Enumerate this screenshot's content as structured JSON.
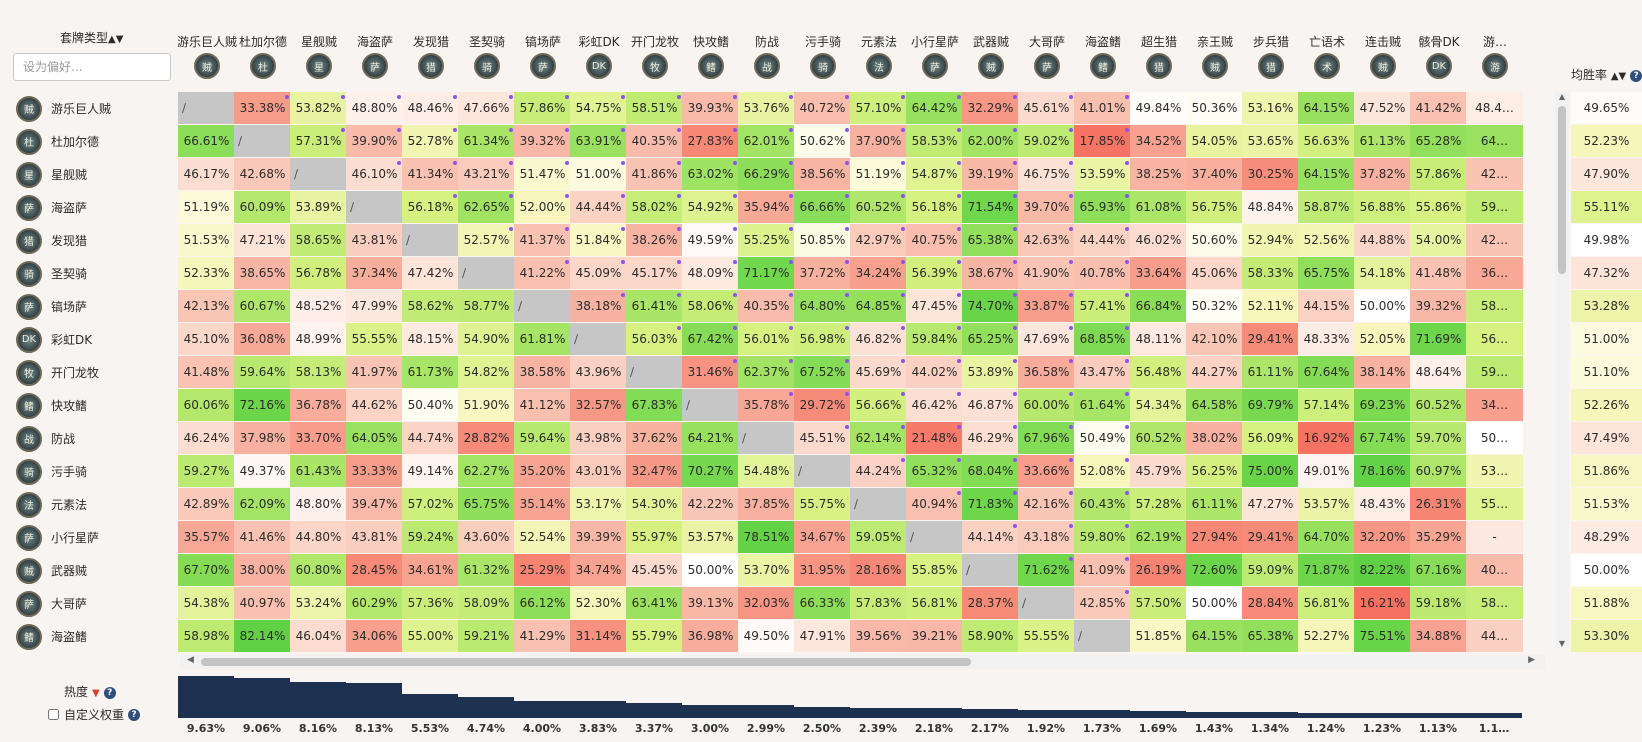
{
  "header": {
    "sort_label": "套牌类型",
    "sort_icon": "sort-updown-icon",
    "search_placeholder": "设为偏好...",
    "winrate_label": "均胜率",
    "help_icon": "question-icon"
  },
  "popularity": {
    "label": "热度",
    "custom_weight_label": "自定义权重",
    "custom_weight_checked": false
  },
  "rows": [
    {
      "name": "游乐巨人贼",
      "glyph": "贼"
    },
    {
      "name": "杜加尔德",
      "glyph": "杜"
    },
    {
      "name": "星舰贼",
      "glyph": "星"
    },
    {
      "name": "海盗萨",
      "glyph": "萨"
    },
    {
      "name": "发现猎",
      "glyph": "猎"
    },
    {
      "name": "圣契骑",
      "glyph": "骑"
    },
    {
      "name": "镐场萨",
      "glyph": "萨"
    },
    {
      "name": "彩虹DK",
      "glyph": "DK"
    },
    {
      "name": "开门龙牧",
      "glyph": "牧"
    },
    {
      "name": "快攻鳍",
      "glyph": "鳍"
    },
    {
      "name": "防战",
      "glyph": "战"
    },
    {
      "name": "污手骑",
      "glyph": "骑"
    },
    {
      "name": "元素法",
      "glyph": "法"
    },
    {
      "name": "小行星萨",
      "glyph": "萨"
    },
    {
      "name": "武器贼",
      "glyph": "贼"
    },
    {
      "name": "大哥萨",
      "glyph": "萨"
    },
    {
      "name": "海盗鳍",
      "glyph": "鳍"
    }
  ],
  "columns": [
    {
      "name": "游乐巨人贼",
      "glyph": "贼",
      "popularity": "9.63%",
      "pop_value": 9.63
    },
    {
      "name": "杜加尔德",
      "glyph": "杜",
      "popularity": "9.06%",
      "pop_value": 9.06
    },
    {
      "name": "星舰贼",
      "glyph": "星",
      "popularity": "8.16%",
      "pop_value": 8.16
    },
    {
      "name": "海盗萨",
      "glyph": "萨",
      "popularity": "8.13%",
      "pop_value": 8.13
    },
    {
      "name": "发现猎",
      "glyph": "猎",
      "popularity": "5.53%",
      "pop_value": 5.53
    },
    {
      "name": "圣契骑",
      "glyph": "骑",
      "popularity": "4.74%",
      "pop_value": 4.74
    },
    {
      "name": "镐场萨",
      "glyph": "萨",
      "popularity": "4.00%",
      "pop_value": 4.0
    },
    {
      "name": "彩虹DK",
      "glyph": "DK",
      "popularity": "3.83%",
      "pop_value": 3.83
    },
    {
      "name": "开门龙牧",
      "glyph": "牧",
      "popularity": "3.37%",
      "pop_value": 3.37
    },
    {
      "name": "快攻鳍",
      "glyph": "鳍",
      "popularity": "3.00%",
      "pop_value": 3.0
    },
    {
      "name": "防战",
      "glyph": "战",
      "popularity": "2.99%",
      "pop_value": 2.99
    },
    {
      "name": "污手骑",
      "glyph": "骑",
      "popularity": "2.50%",
      "pop_value": 2.5
    },
    {
      "name": "元素法",
      "glyph": "法",
      "popularity": "2.39%",
      "pop_value": 2.39
    },
    {
      "name": "小行星萨",
      "glyph": "萨",
      "popularity": "2.18%",
      "pop_value": 2.18
    },
    {
      "name": "武器贼",
      "glyph": "贼",
      "popularity": "2.17%",
      "pop_value": 2.17
    },
    {
      "name": "大哥萨",
      "glyph": "萨",
      "popularity": "1.92%",
      "pop_value": 1.92
    },
    {
      "name": "海盗鳍",
      "glyph": "鳍",
      "popularity": "1.73%",
      "pop_value": 1.73
    },
    {
      "name": "超生猎",
      "glyph": "猎",
      "popularity": "1.69%",
      "pop_value": 1.69
    },
    {
      "name": "亲王贼",
      "glyph": "贼",
      "popularity": "1.43%",
      "pop_value": 1.43
    },
    {
      "name": "步兵猎",
      "glyph": "猎",
      "popularity": "1.34%",
      "pop_value": 1.34
    },
    {
      "name": "亡语术",
      "glyph": "术",
      "popularity": "1.24%",
      "pop_value": 1.24
    },
    {
      "name": "连击贼",
      "glyph": "贼",
      "popularity": "1.23%",
      "pop_value": 1.23
    },
    {
      "name": "骸骨DK",
      "glyph": "DK",
      "popularity": "1.13%",
      "pop_value": 1.13
    },
    {
      "name": "游…",
      "glyph": "游",
      "popularity": "1.1…",
      "pop_value": 1.1
    }
  ],
  "self_mark": "∕",
  "matrix": [
    [
      null,
      "33.38%",
      "53.82%",
      "48.80%",
      "48.46%",
      "47.66%",
      "57.86%",
      "54.75%",
      "58.51%",
      "39.93%",
      "53.76%",
      "40.72%",
      "57.10%",
      "64.42%",
      "32.29%",
      "45.61%",
      "41.01%",
      "49.84%",
      "50.36%",
      "53.16%",
      "64.15%",
      "47.52%",
      "41.42%",
      "48.4…"
    ],
    [
      "66.61%",
      null,
      "57.31%",
      "39.90%",
      "52.78%",
      "61.34%",
      "39.32%",
      "63.91%",
      "40.35%",
      "27.83%",
      "62.01%",
      "50.62%",
      "37.90%",
      "58.53%",
      "62.00%",
      "59.02%",
      "17.85%",
      "34.52%",
      "54.05%",
      "53.65%",
      "56.63%",
      "61.13%",
      "65.28%",
      "64…"
    ],
    [
      "46.17%",
      "42.68%",
      null,
      "46.10%",
      "41.34%",
      "43.21%",
      "51.47%",
      "51.00%",
      "41.86%",
      "63.02%",
      "66.29%",
      "38.56%",
      "51.19%",
      "54.87%",
      "39.19%",
      "46.75%",
      "53.59%",
      "38.25%",
      "37.40%",
      "30.25%",
      "64.15%",
      "37.82%",
      "57.86%",
      "42…"
    ],
    [
      "51.19%",
      "60.09%",
      "53.89%",
      null,
      "56.18%",
      "62.65%",
      "52.00%",
      "44.44%",
      "58.02%",
      "54.92%",
      "35.94%",
      "66.66%",
      "60.52%",
      "56.18%",
      "71.54%",
      "39.70%",
      "65.93%",
      "61.08%",
      "56.75%",
      "48.84%",
      "58.87%",
      "56.88%",
      "55.86%",
      "59…"
    ],
    [
      "51.53%",
      "47.21%",
      "58.65%",
      "43.81%",
      null,
      "52.57%",
      "41.37%",
      "51.84%",
      "38.26%",
      "49.59%",
      "55.25%",
      "50.85%",
      "42.97%",
      "40.75%",
      "65.38%",
      "42.63%",
      "44.44%",
      "46.02%",
      "50.60%",
      "52.94%",
      "52.56%",
      "44.88%",
      "54.00%",
      "42…"
    ],
    [
      "52.33%",
      "38.65%",
      "56.78%",
      "37.34%",
      "47.42%",
      null,
      "41.22%",
      "45.09%",
      "45.17%",
      "48.09%",
      "71.17%",
      "37.72%",
      "34.24%",
      "56.39%",
      "38.67%",
      "41.90%",
      "40.78%",
      "33.64%",
      "45.06%",
      "58.33%",
      "65.75%",
      "54.18%",
      "41.48%",
      "36…"
    ],
    [
      "42.13%",
      "60.67%",
      "48.52%",
      "47.99%",
      "58.62%",
      "58.77%",
      null,
      "38.18%",
      "61.41%",
      "58.06%",
      "40.35%",
      "64.80%",
      "64.85%",
      "47.45%",
      "74.70%",
      "33.87%",
      "57.41%",
      "66.84%",
      "50.32%",
      "52.11%",
      "44.15%",
      "50.00%",
      "39.32%",
      "58…"
    ],
    [
      "45.10%",
      "36.08%",
      "48.99%",
      "55.55%",
      "48.15%",
      "54.90%",
      "61.81%",
      null,
      "56.03%",
      "67.42%",
      "56.01%",
      "56.98%",
      "46.82%",
      "59.84%",
      "65.25%",
      "47.69%",
      "68.85%",
      "48.11%",
      "42.10%",
      "29.41%",
      "48.33%",
      "52.05%",
      "71.69%",
      "56…"
    ],
    [
      "41.48%",
      "59.64%",
      "58.13%",
      "41.97%",
      "61.73%",
      "54.82%",
      "38.58%",
      "43.96%",
      null,
      "31.46%",
      "62.37%",
      "67.52%",
      "45.69%",
      "44.02%",
      "53.89%",
      "36.58%",
      "43.47%",
      "56.48%",
      "44.27%",
      "61.11%",
      "67.64%",
      "38.14%",
      "48.64%",
      "59…"
    ],
    [
      "60.06%",
      "72.16%",
      "36.78%",
      "44.62%",
      "50.40%",
      "51.90%",
      "41.12%",
      "32.57%",
      "67.83%",
      null,
      "35.78%",
      "29.72%",
      "56.66%",
      "46.42%",
      "46.87%",
      "60.00%",
      "61.64%",
      "54.34%",
      "64.58%",
      "69.79%",
      "57.14%",
      "69.23%",
      "60.52%",
      "34…"
    ],
    [
      "46.24%",
      "37.98%",
      "33.70%",
      "64.05%",
      "44.74%",
      "28.82%",
      "59.64%",
      "43.98%",
      "37.62%",
      "64.21%",
      null,
      "45.51%",
      "62.14%",
      "21.48%",
      "46.29%",
      "67.96%",
      "50.49%",
      "60.52%",
      "38.02%",
      "56.09%",
      "16.92%",
      "67.74%",
      "59.70%",
      "50…"
    ],
    [
      "59.27%",
      "49.37%",
      "61.43%",
      "33.33%",
      "49.14%",
      "62.27%",
      "35.20%",
      "43.01%",
      "32.47%",
      "70.27%",
      "54.48%",
      null,
      "44.24%",
      "65.32%",
      "68.04%",
      "33.66%",
      "52.08%",
      "45.79%",
      "56.25%",
      "75.00%",
      "49.01%",
      "78.16%",
      "60.97%",
      "53…"
    ],
    [
      "42.89%",
      "62.09%",
      "48.80%",
      "39.47%",
      "57.02%",
      "65.75%",
      "35.14%",
      "53.17%",
      "54.30%",
      "42.22%",
      "37.85%",
      "55.75%",
      null,
      "40.94%",
      "71.83%",
      "42.16%",
      "60.43%",
      "57.28%",
      "61.11%",
      "47.27%",
      "53.57%",
      "48.43%",
      "26.31%",
      "55…"
    ],
    [
      "35.57%",
      "41.46%",
      "44.80%",
      "43.81%",
      "59.24%",
      "43.60%",
      "52.54%",
      "39.39%",
      "55.97%",
      "53.57%",
      "78.51%",
      "34.67%",
      "59.05%",
      null,
      "44.14%",
      "43.18%",
      "59.80%",
      "62.19%",
      "27.94%",
      "29.41%",
      "64.70%",
      "32.20%",
      "35.29%",
      "-"
    ],
    [
      "67.70%",
      "38.00%",
      "60.80%",
      "28.45%",
      "34.61%",
      "61.32%",
      "25.29%",
      "34.74%",
      "45.45%",
      "50.00%",
      "53.70%",
      "31.95%",
      "28.16%",
      "55.85%",
      null,
      "71.62%",
      "41.09%",
      "26.19%",
      "72.60%",
      "59.09%",
      "71.87%",
      "82.22%",
      "67.16%",
      "40…"
    ],
    [
      "54.38%",
      "40.97%",
      "53.24%",
      "60.29%",
      "57.36%",
      "58.09%",
      "66.12%",
      "52.30%",
      "63.41%",
      "39.13%",
      "32.03%",
      "66.33%",
      "57.83%",
      "56.81%",
      "28.37%",
      null,
      "42.85%",
      "57.50%",
      "50.00%",
      "28.84%",
      "56.81%",
      "16.21%",
      "59.18%",
      "58…"
    ],
    [
      "58.98%",
      "82.14%",
      "46.04%",
      "34.06%",
      "55.00%",
      "59.21%",
      "41.29%",
      "31.14%",
      "55.79%",
      "36.98%",
      "49.50%",
      "47.91%",
      "39.56%",
      "39.21%",
      "58.90%",
      "55.55%",
      null,
      "51.85%",
      "64.15%",
      "65.38%",
      "52.27%",
      "75.51%",
      "34.88%",
      "44…"
    ]
  ],
  "avg_winrates": [
    "49.65%",
    "52.23%",
    "47.90%",
    "55.11%",
    "49.98%",
    "47.32%",
    "53.28%",
    "51.00%",
    "51.10%",
    "52.26%",
    "47.49%",
    "51.86%",
    "51.53%",
    "48.29%",
    "50.00%",
    "51.88%",
    "53.30%"
  ]
}
